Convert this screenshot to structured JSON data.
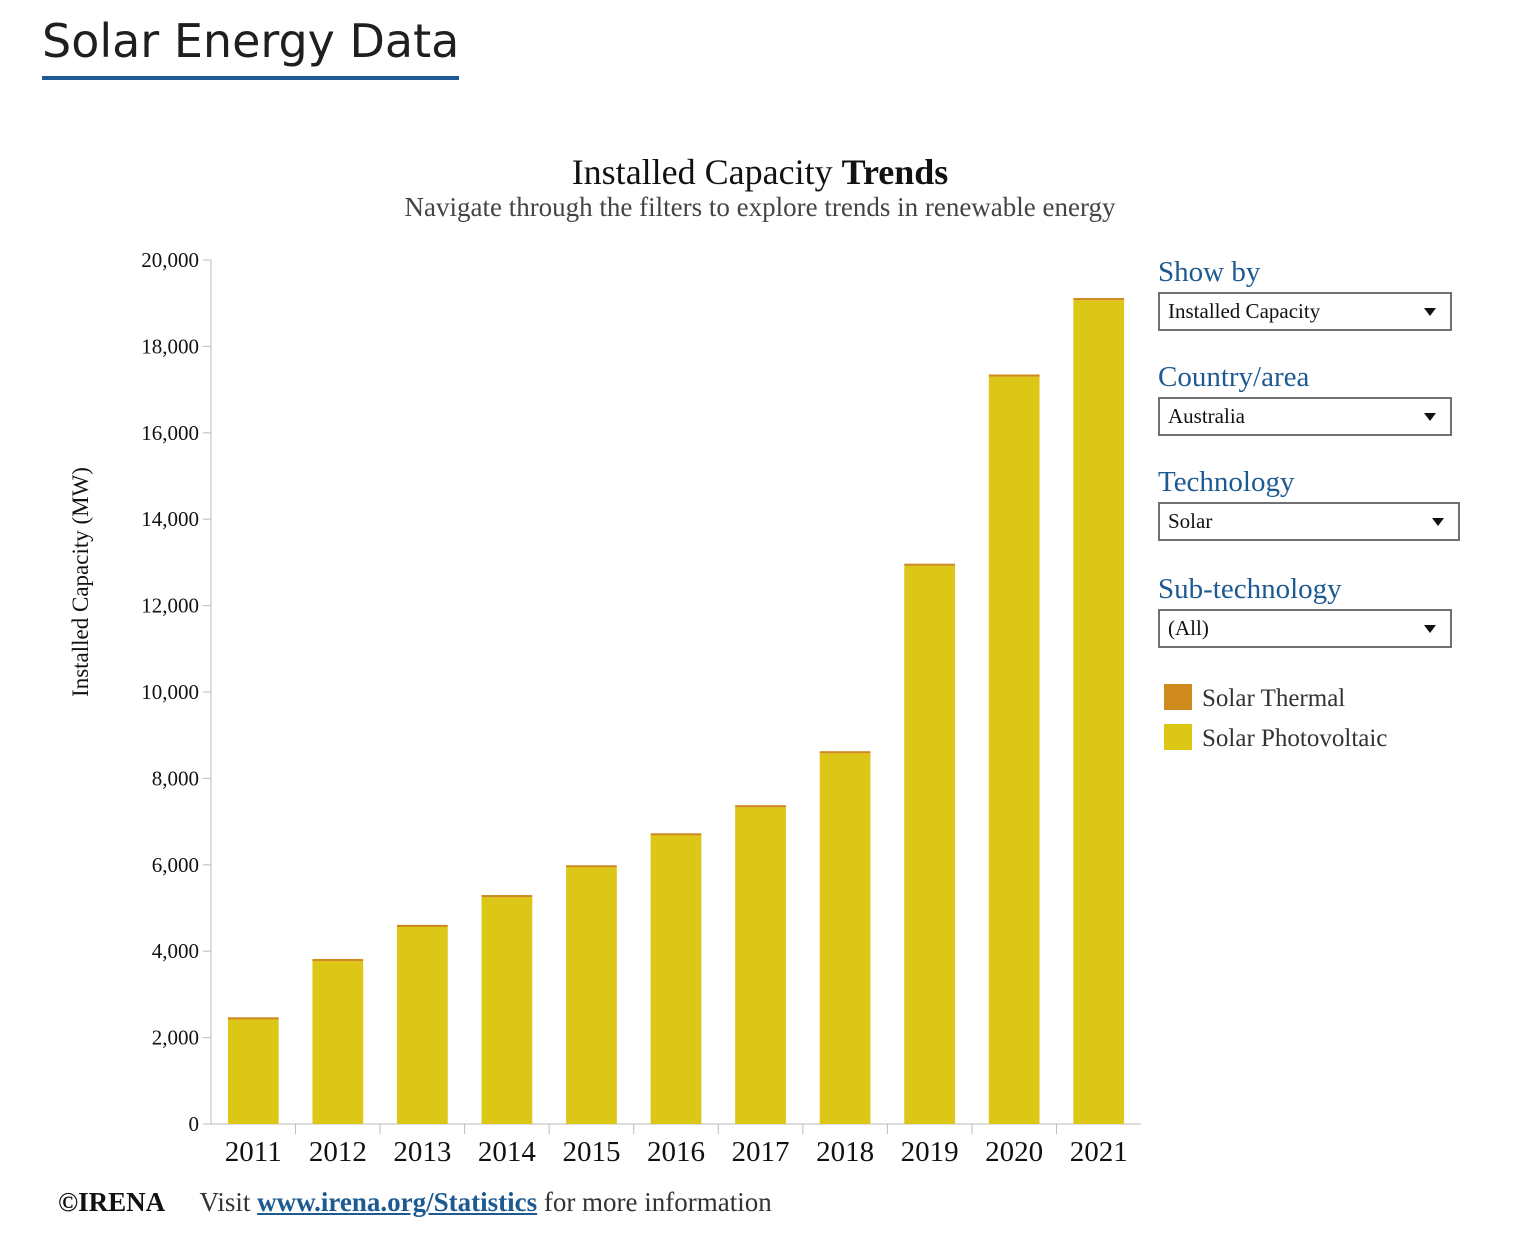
{
  "page": {
    "title": "Solar Energy Data"
  },
  "chart_header": {
    "title_regular": "Installed Capacity",
    "title_bold": "Trends",
    "subtitle": "Navigate through the filters to explore trends in renewable energy"
  },
  "filters": {
    "show_by": {
      "label": "Show by",
      "value": "Installed Capacity"
    },
    "country": {
      "label": "Country/area",
      "value": "Australia"
    },
    "technology": {
      "label": "Technology",
      "value": "Solar"
    },
    "sub_technology": {
      "label": "Sub-technology",
      "value": "(All)"
    }
  },
  "legend": {
    "items": [
      {
        "label": "Solar Thermal",
        "color": "#cf8a1e"
      },
      {
        "label": "Solar Photovoltaic",
        "color": "#dcc616"
      }
    ]
  },
  "footer": {
    "copyright": "©IRENA",
    "visit": "Visit",
    "link_text": "www.irena.org/Statistics",
    "suffix": "for more information"
  },
  "chart_data": {
    "type": "bar",
    "stacked": true,
    "categories": [
      "2011",
      "2012",
      "2013",
      "2014",
      "2015",
      "2016",
      "2017",
      "2018",
      "2019",
      "2020",
      "2021"
    ],
    "series": [
      {
        "name": "Solar Photovoltaic",
        "color": "#dcc616",
        "values": [
          2420,
          3770,
          4560,
          5250,
          5940,
          6680,
          7330,
          8580,
          12920,
          17300,
          19070
        ]
      },
      {
        "name": "Solar Thermal",
        "color": "#cf8a1e",
        "values": [
          50,
          50,
          50,
          50,
          50,
          50,
          50,
          50,
          50,
          50,
          50
        ]
      }
    ],
    "ylabel": "Installed Capacity (MW)",
    "xlabel": "",
    "ylim": [
      0,
      20000
    ],
    "yticks": [
      0,
      2000,
      4000,
      6000,
      8000,
      10000,
      12000,
      14000,
      16000,
      18000,
      20000
    ],
    "grid": false,
    "legend_position": "right"
  }
}
